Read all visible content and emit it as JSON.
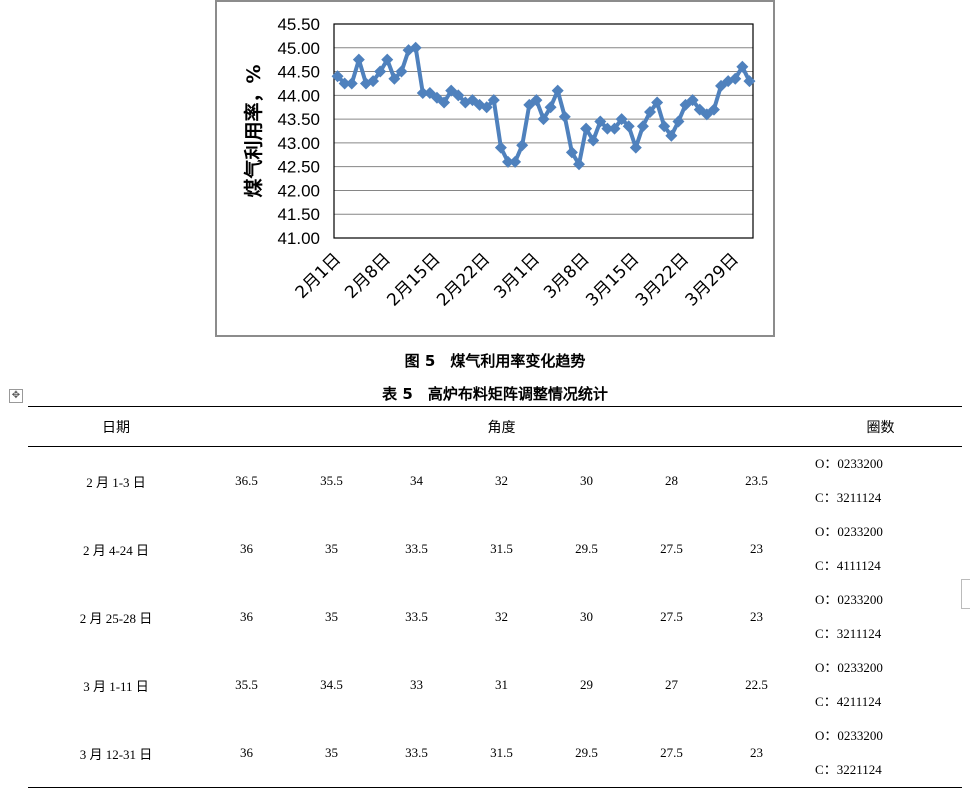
{
  "chart_data": {
    "type": "line",
    "title": "",
    "ylabel": "煤气利用率，%",
    "xlabel": "",
    "ylim": [
      41.0,
      45.5
    ],
    "y_ticks": [
      "41.00",
      "41.50",
      "42.00",
      "42.50",
      "43.00",
      "43.50",
      "44.00",
      "44.50",
      "45.00",
      "45.50"
    ],
    "x_tick_labels": [
      "2月1日",
      "2月8日",
      "2月15日",
      "2月22日",
      "3月1日",
      "3月8日",
      "3月15日",
      "3月22日",
      "3月29日"
    ],
    "grid": true,
    "legend": "none",
    "series": [
      {
        "color": "#4f81bd",
        "x": [
          "2月1日",
          "2月2日",
          "2月3日",
          "2月4日",
          "2月5日",
          "2月6日",
          "2月7日",
          "2月8日",
          "2月9日",
          "2月10日",
          "2月11日",
          "2月12日",
          "2月13日",
          "2月14日",
          "2月15日",
          "2月16日",
          "2月17日",
          "2月18日",
          "2月19日",
          "2月20日",
          "2月21日",
          "2月22日",
          "2月23日",
          "2月24日",
          "2月25日",
          "2月26日",
          "2月27日",
          "2月28日",
          "3月1日",
          "3月2日",
          "3月3日",
          "3月4日",
          "3月5日",
          "3月6日",
          "3月7日",
          "3月8日",
          "3月9日",
          "3月10日",
          "3月11日",
          "3月12日",
          "3月13日",
          "3月14日",
          "3月15日",
          "3月16日",
          "3月17日",
          "3月18日",
          "3月19日",
          "3月20日",
          "3月21日",
          "3月22日",
          "3月23日",
          "3月24日",
          "3月25日",
          "3月26日",
          "3月27日",
          "3月28日",
          "3月29日",
          "3月30日",
          "3月31日"
        ],
        "values": [
          44.4,
          44.25,
          44.25,
          44.75,
          44.25,
          44.3,
          44.5,
          44.75,
          44.35,
          44.5,
          44.95,
          45.0,
          44.05,
          44.05,
          43.95,
          43.85,
          44.1,
          44.0,
          43.85,
          43.9,
          43.8,
          43.75,
          43.9,
          42.9,
          42.6,
          42.6,
          42.95,
          43.8,
          43.9,
          43.5,
          43.75,
          44.1,
          43.55,
          42.8,
          42.55,
          43.3,
          43.05,
          43.45,
          43.3,
          43.3,
          43.5,
          43.35,
          42.9,
          43.35,
          43.65,
          43.85,
          43.35,
          43.15,
          43.45,
          43.8,
          43.9,
          43.7,
          43.6,
          43.7,
          44.2,
          44.3,
          44.35,
          44.6,
          44.3
        ]
      }
    ]
  },
  "captions": {
    "figure": "图 5　煤气利用率变化趋势",
    "table": "表 5　高炉布料矩阵调整情况统计"
  },
  "table": {
    "headers": {
      "date": "日期",
      "angle": "角度",
      "rings": "圈数"
    },
    "rows": [
      {
        "date": "2 月 1-3 日",
        "angles": [
          "36.5",
          "35.5",
          "34",
          "32",
          "30",
          "28",
          "23.5"
        ],
        "o": "O：0233200",
        "c": "C：3211124"
      },
      {
        "date": "2 月 4-24 日",
        "angles": [
          "36",
          "35",
          "33.5",
          "31.5",
          "29.5",
          "27.5",
          "23"
        ],
        "o": "O：0233200",
        "c": "C：4111124"
      },
      {
        "date": "2 月 25-28 日",
        "angles": [
          "36",
          "35",
          "33.5",
          "32",
          "30",
          "27.5",
          "23"
        ],
        "o": "O：0233200",
        "c": "C：3211124"
      },
      {
        "date": "3 月 1-11 日",
        "angles": [
          "35.5",
          "34.5",
          "33",
          "31",
          "29",
          "27",
          "22.5"
        ],
        "o": "O：0233200",
        "c": "C：4211124"
      },
      {
        "date": "3 月 12-31 日",
        "angles": [
          "36",
          "35",
          "33.5",
          "31.5",
          "29.5",
          "27.5",
          "23"
        ],
        "o": "O：0233200",
        "c": "C：3221124"
      }
    ]
  }
}
